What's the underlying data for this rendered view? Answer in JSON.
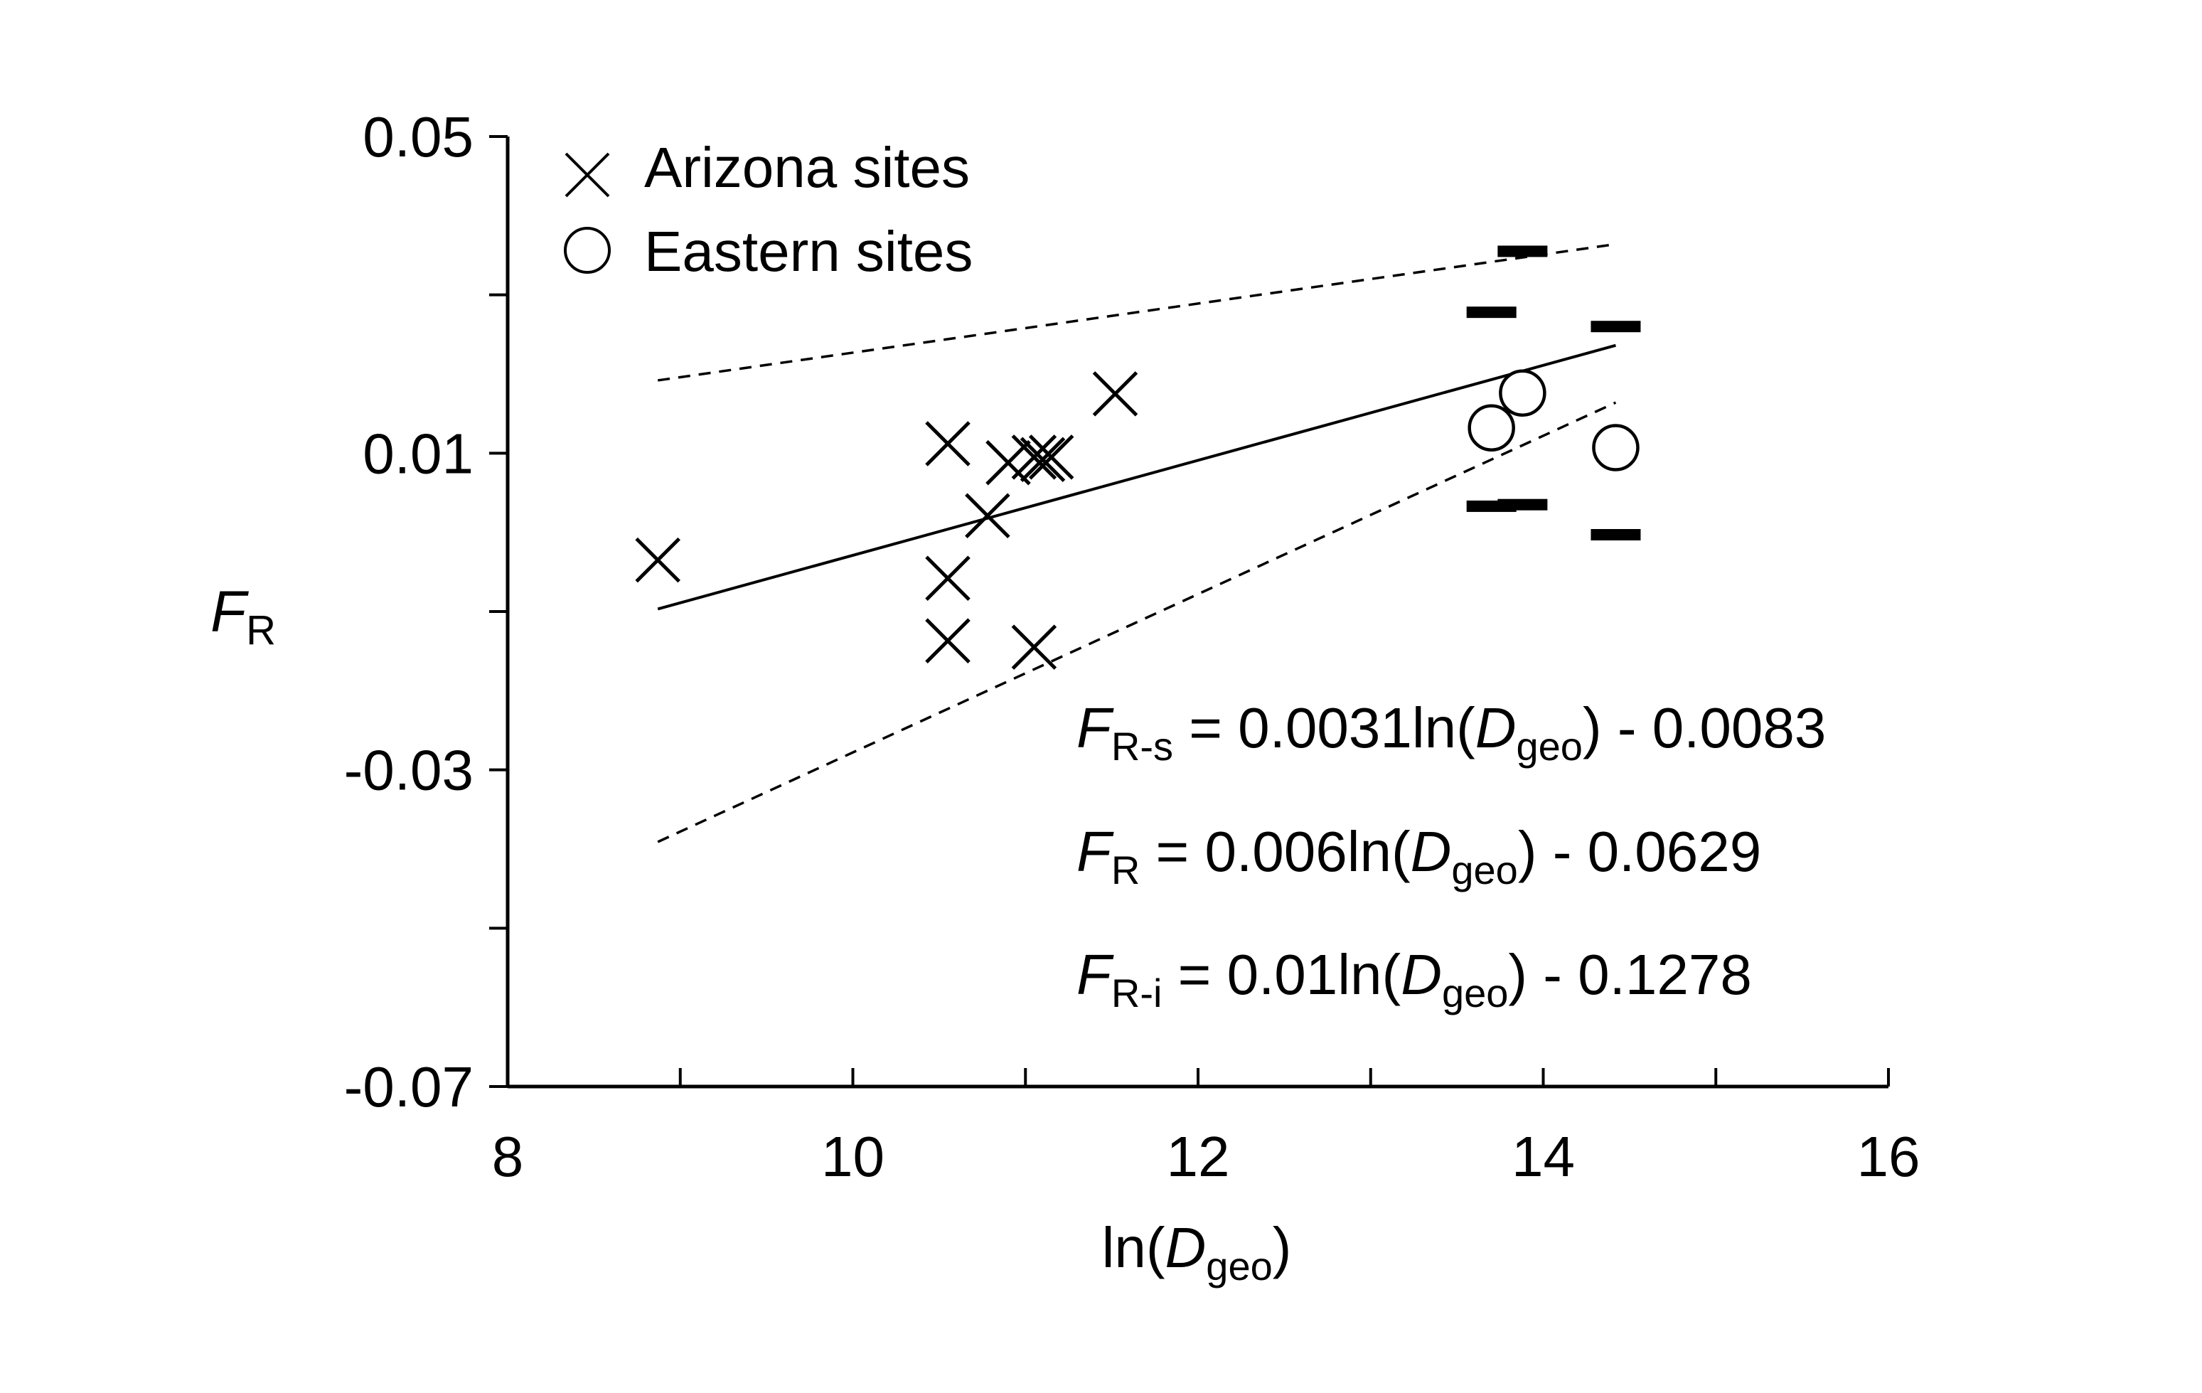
{
  "chart_data": {
    "type": "scatter",
    "xlabel": {
      "prefix": "ln(",
      "var": "D",
      "sub": "geo",
      "suffix": ")"
    },
    "ylabel": {
      "var": "F",
      "sub": "R"
    },
    "xlim": [
      8,
      16
    ],
    "ylim": [
      -0.07,
      0.05
    ],
    "x_ticks": [
      8,
      10,
      12,
      14,
      16
    ],
    "x_tick_labels": [
      "8",
      "10",
      "12",
      "14",
      "16"
    ],
    "x_minor_ticks": [
      9,
      11,
      13,
      15
    ],
    "y_ticks": [
      0.05,
      0.01,
      -0.03,
      -0.07
    ],
    "y_tick_labels": [
      "0.05",
      "0.01",
      "-0.03",
      "-0.07"
    ],
    "y_minor_ticks": [
      0.03,
      -0.01,
      -0.05
    ],
    "legend_position": "top-left",
    "series": [
      {
        "name": "Arizona sites",
        "marker": "x",
        "points": [
          {
            "x": 8.87,
            "y": -0.0035
          },
          {
            "x": 10.55,
            "y": 0.0112
          },
          {
            "x": 10.55,
            "y": -0.0058
          },
          {
            "x": 10.55,
            "y": -0.0137
          },
          {
            "x": 10.78,
            "y": 0.0021
          },
          {
            "x": 10.9,
            "y": 0.0088
          },
          {
            "x": 11.05,
            "y": 0.0095
          },
          {
            "x": 11.1,
            "y": 0.0092
          },
          {
            "x": 11.15,
            "y": 0.0095
          },
          {
            "x": 11.05,
            "y": -0.0145
          },
          {
            "x": 11.52,
            "y": 0.0175
          }
        ]
      },
      {
        "name": "Eastern sites",
        "marker": "circle",
        "points": [
          {
            "x": 13.7,
            "y": 0.0132
          },
          {
            "x": 13.88,
            "y": 0.0176
          },
          {
            "x": 14.42,
            "y": 0.0107
          }
        ],
        "error_bars": [
          {
            "x": 13.7,
            "upper": 0.0278,
            "lower": 0.0033
          },
          {
            "x": 13.88,
            "upper": 0.0355,
            "lower": 0.0035
          },
          {
            "x": 14.42,
            "upper": 0.026,
            "lower": -0.0003
          }
        ]
      }
    ],
    "fit_lines": [
      {
        "style": "solid",
        "slope": 0.006,
        "intercept": -0.0629,
        "x_range": [
          8.87,
          14.42
        ]
      },
      {
        "style": "dashed",
        "slope": 0.0031,
        "intercept": -0.0083,
        "x_range": [
          8.87,
          14.42
        ]
      },
      {
        "style": "dashed",
        "slope": 0.01,
        "intercept": -0.1278,
        "x_range": [
          8.87,
          14.42
        ]
      }
    ],
    "equations": [
      {
        "var": "F",
        "sub": "R-s",
        "mid": " = 0.0031ln(",
        "dvar": "D",
        "dsub": "geo",
        "tail": ") - 0.0083"
      },
      {
        "var": "F",
        "sub": "R",
        "mid": " = 0.006ln(",
        "dvar": "D",
        "dsub": "geo",
        "tail": ") - 0.0629"
      },
      {
        "var": "F",
        "sub": "R-i",
        "mid": " = 0.01ln(",
        "dvar": "D",
        "dsub": "geo",
        "tail": ") - 0.1278"
      }
    ]
  }
}
